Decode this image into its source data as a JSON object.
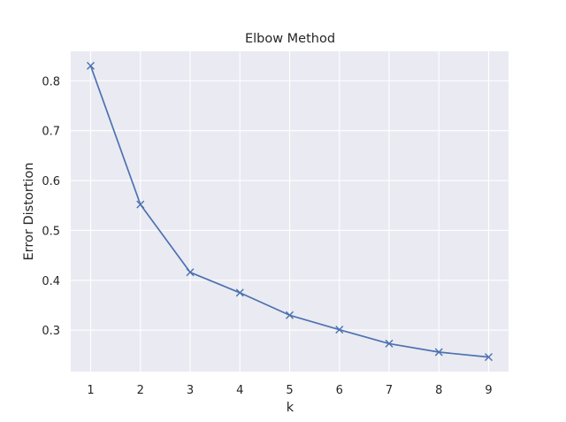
{
  "chart_data": {
    "type": "line",
    "title": "Elbow Method",
    "xlabel": "k",
    "ylabel": "Error Distortion",
    "x": [
      1,
      2,
      3,
      4,
      5,
      6,
      7,
      8,
      9
    ],
    "series": [
      {
        "values": [
          0.83,
          0.552,
          0.416,
          0.375,
          0.33,
          0.301,
          0.273,
          0.256,
          0.246
        ],
        "color": "#4c72b0",
        "marker": "x"
      }
    ],
    "xticks": [
      1,
      2,
      3,
      4,
      5,
      6,
      7,
      8,
      9
    ],
    "yticks": [
      0.3,
      0.4,
      0.5,
      0.6,
      0.7,
      0.8
    ],
    "xlim": [
      0.6,
      9.4
    ],
    "ylim": [
      0.217,
      0.859
    ],
    "grid": true,
    "style": {
      "plot_background": "#eaeaf2",
      "grid_color": "#ffffff"
    }
  }
}
